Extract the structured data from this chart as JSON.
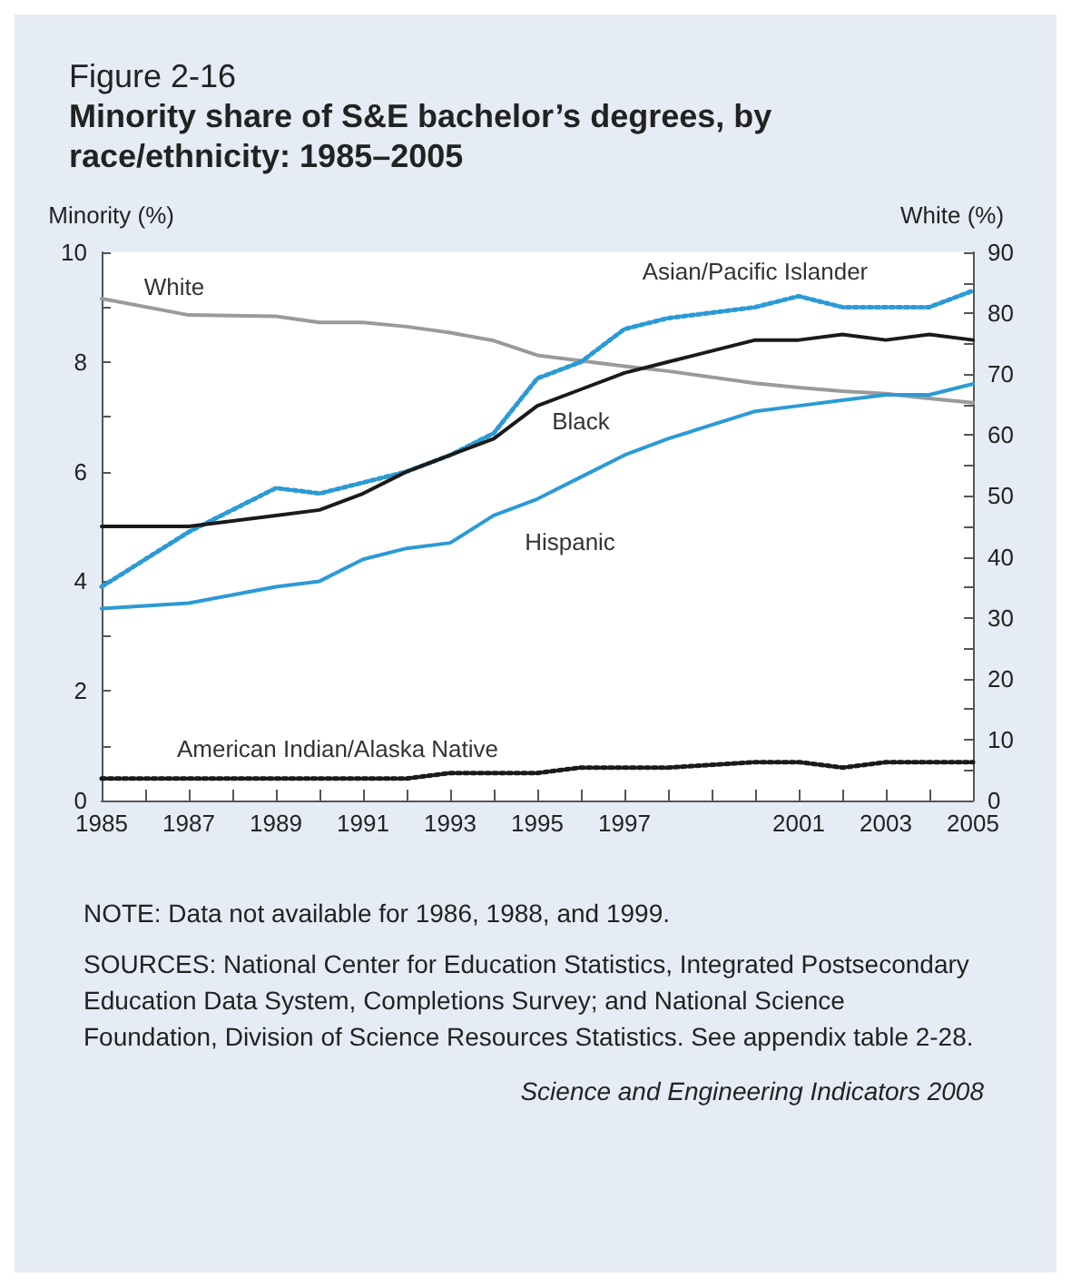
{
  "chart_data": {
    "type": "line",
    "subtitle": "Figure 2-16",
    "title": "Minority share of S&E bachelor’s degrees, by race/ethnicity: 1985–2005",
    "ylabel": "Minority (%)",
    "y2label": "White (%)",
    "xlim": [
      1985,
      2005
    ],
    "xticks": [
      1985,
      {
        "value": 1986,
        "label": null
      },
      1987,
      {
        "value": 1988,
        "label": null
      },
      1989,
      {
        "value": 1990,
        "label": null
      },
      1991,
      {
        "value": 1992,
        "label": null
      },
      1993,
      {
        "value": 1994,
        "label": null
      },
      1995,
      {
        "value": 1996,
        "label": null
      },
      1997,
      {
        "value": 1998,
        "label": null
      },
      {
        "value": 1999,
        "label": null
      },
      {
        "value": 2000,
        "label": null
      },
      2001,
      {
        "value": 2002,
        "label": null
      },
      2003,
      {
        "value": 2004,
        "label": null
      },
      2005
    ],
    "ylim": [
      0,
      10
    ],
    "yticks": [
      0,
      {
        "value": 1,
        "label": null
      },
      2,
      {
        "value": 3,
        "label": null
      },
      4,
      {
        "value": 5,
        "label": null
      },
      6,
      {
        "value": 7,
        "label": null
      },
      8,
      {
        "value": 9,
        "label": null
      },
      10
    ],
    "y2lim": [
      0,
      90
    ],
    "y2ticks": [
      0,
      {
        "value": 5,
        "label": null
      },
      10,
      {
        "value": 15,
        "label": null
      },
      20,
      {
        "value": 25,
        "label": null
      },
      30,
      {
        "value": 35,
        "label": null
      },
      40,
      {
        "value": 45,
        "label": null
      },
      50,
      {
        "value": 55,
        "label": null
      },
      60,
      {
        "value": 65,
        "label": null
      },
      70,
      {
        "value": 75,
        "label": null
      },
      80,
      {
        "value": 85,
        "label": null
      },
      90
    ],
    "x": [
      1985,
      1987,
      1989,
      1990,
      1991,
      1992,
      1993,
      1994,
      1995,
      1996,
      1997,
      1998,
      2000,
      2001,
      2002,
      2003,
      2004,
      2005
    ],
    "series": [
      {
        "name": "White",
        "color": "#9a9a9a",
        "axis": "y2",
        "line_style": "solid",
        "values": [
          82.4,
          79.7,
          79.5,
          78.5,
          78.5,
          77.8,
          76.8,
          75.5,
          73.1,
          72.2,
          71.3,
          70.5,
          68.5,
          67.8,
          67.2,
          66.8,
          66.0,
          65.3
        ]
      },
      {
        "name": "Asian/Pacific Islander",
        "color": "#2b9ad6",
        "line_style": "dotted",
        "values": [
          3.9,
          4.9,
          5.7,
          5.6,
          5.8,
          6.0,
          6.3,
          6.7,
          7.7,
          8.0,
          8.6,
          8.8,
          9.0,
          9.2,
          9.0,
          9.0,
          9.0,
          9.3
        ]
      },
      {
        "name": "Black",
        "color": "#1a1a1a",
        "line_style": "solid",
        "values": [
          5.0,
          5.0,
          5.2,
          5.3,
          5.6,
          6.0,
          6.3,
          6.6,
          7.2,
          7.5,
          7.8,
          8.0,
          8.4,
          8.4,
          8.5,
          8.4,
          8.5,
          8.4
        ]
      },
      {
        "name": "Hispanic",
        "color": "#2b9ad6",
        "line_style": "solid",
        "values": [
          3.5,
          3.6,
          3.9,
          4.0,
          4.4,
          4.6,
          4.7,
          5.2,
          5.5,
          5.9,
          6.3,
          6.6,
          7.1,
          7.2,
          7.3,
          7.4,
          7.4,
          7.6
        ]
      },
      {
        "name": "American Indian/Alaska Native",
        "color": "#1a1a1a",
        "line_style": "dotted",
        "values": [
          0.4,
          0.4,
          0.4,
          0.4,
          0.4,
          0.4,
          0.5,
          0.5,
          0.5,
          0.6,
          0.6,
          0.6,
          0.7,
          0.7,
          0.6,
          0.7,
          0.7,
          0.7
        ]
      }
    ],
    "grid": false,
    "legend": false,
    "marker": "none",
    "annotations": [
      "NOTE: Data not available for 1986, 1988, and 1999.",
      "SOURCES: National Center for Education Statistics, Integrated Postsecondary Education Data System, Completions Survey; and National Science Foundation, Division of Science Resources Statistics. See appendix table 2-28.",
      "Science and Engineering Indicators 2008"
    ]
  }
}
